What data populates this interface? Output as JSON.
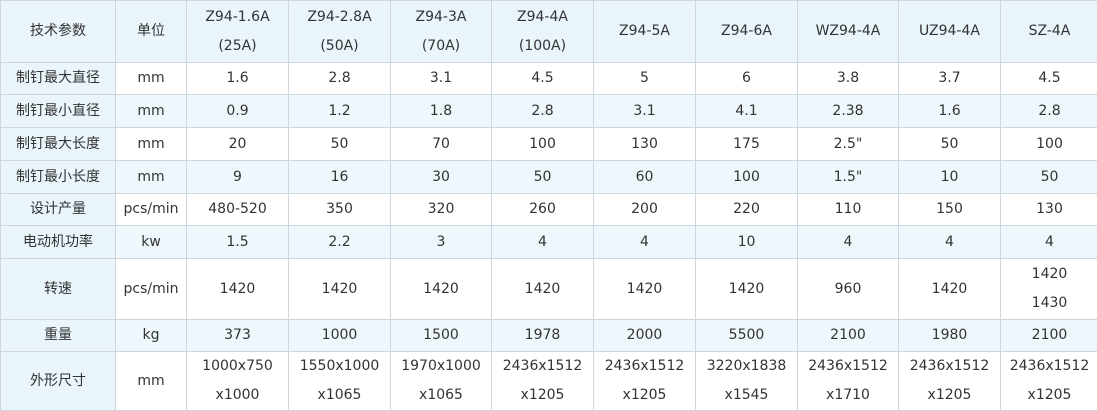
{
  "table": {
    "header": [
      [
        "技术参数"
      ],
      [
        "单位"
      ],
      [
        "Z94-1.6A",
        "(25A)"
      ],
      [
        "Z94-2.8A",
        "(50A)"
      ],
      [
        "Z94-3A",
        "(70A)"
      ],
      [
        "Z94-4A",
        "(100A)"
      ],
      [
        "Z94-5A"
      ],
      [
        "Z94-6A"
      ],
      [
        "WZ94-4A"
      ],
      [
        "UZ94-4A"
      ],
      [
        "SZ-4A"
      ]
    ],
    "rows": [
      [
        [
          "制钉最大直径"
        ],
        [
          "mm"
        ],
        [
          "1.6"
        ],
        [
          "2.8"
        ],
        [
          "3.1"
        ],
        [
          "4.5"
        ],
        [
          "5"
        ],
        [
          "6"
        ],
        [
          "3.8"
        ],
        [
          "3.7"
        ],
        [
          "4.5"
        ]
      ],
      [
        [
          "制钉最小直径"
        ],
        [
          "mm"
        ],
        [
          "0.9"
        ],
        [
          "1.2"
        ],
        [
          "1.8"
        ],
        [
          "2.8"
        ],
        [
          "3.1"
        ],
        [
          "4.1"
        ],
        [
          "2.38"
        ],
        [
          "1.6"
        ],
        [
          "2.8"
        ]
      ],
      [
        [
          "制钉最大长度"
        ],
        [
          "mm"
        ],
        [
          "20"
        ],
        [
          "50"
        ],
        [
          "70"
        ],
        [
          "100"
        ],
        [
          "130"
        ],
        [
          "175"
        ],
        [
          "2.5\""
        ],
        [
          "50"
        ],
        [
          "100"
        ]
      ],
      [
        [
          "制钉最小长度"
        ],
        [
          "mm"
        ],
        [
          "9"
        ],
        [
          "16"
        ],
        [
          "30"
        ],
        [
          "50"
        ],
        [
          "60"
        ],
        [
          "100"
        ],
        [
          "1.5\""
        ],
        [
          "10"
        ],
        [
          "50"
        ]
      ],
      [
        [
          "设计产量"
        ],
        [
          "pcs/min"
        ],
        [
          "480-520"
        ],
        [
          "350"
        ],
        [
          "320"
        ],
        [
          "260"
        ],
        [
          "200"
        ],
        [
          "220"
        ],
        [
          "110"
        ],
        [
          "150"
        ],
        [
          "130"
        ]
      ],
      [
        [
          "电动机功率"
        ],
        [
          "kw"
        ],
        [
          "1.5"
        ],
        [
          "2.2"
        ],
        [
          "3"
        ],
        [
          "4"
        ],
        [
          "4"
        ],
        [
          "10"
        ],
        [
          "4"
        ],
        [
          "4"
        ],
        [
          "4"
        ]
      ],
      [
        [
          "转速"
        ],
        [
          "pcs/min"
        ],
        [
          "1420"
        ],
        [
          "1420"
        ],
        [
          "1420"
        ],
        [
          "1420"
        ],
        [
          "1420"
        ],
        [
          "1420"
        ],
        [
          "960"
        ],
        [
          "1420"
        ],
        [
          "1420",
          "1430"
        ]
      ],
      [
        [
          "重量"
        ],
        [
          "kg"
        ],
        [
          "373"
        ],
        [
          "1000"
        ],
        [
          "1500"
        ],
        [
          "1978"
        ],
        [
          "2000"
        ],
        [
          "5500"
        ],
        [
          "2100"
        ],
        [
          "1980"
        ],
        [
          "2100"
        ]
      ],
      [
        [
          "外形尺寸"
        ],
        [
          "mm"
        ],
        [
          "1000x750",
          "x1000"
        ],
        [
          "1550x1000",
          "x1065"
        ],
        [
          "1970x1000",
          "x1065"
        ],
        [
          "2436x1512",
          "x1205"
        ],
        [
          "2436x1512",
          "x1205"
        ],
        [
          "3220x1838",
          "x1545"
        ],
        [
          "2436x1512",
          "x1710"
        ],
        [
          "2436x1512",
          "x1205"
        ],
        [
          "2436x1512",
          "x1205"
        ]
      ]
    ]
  }
}
